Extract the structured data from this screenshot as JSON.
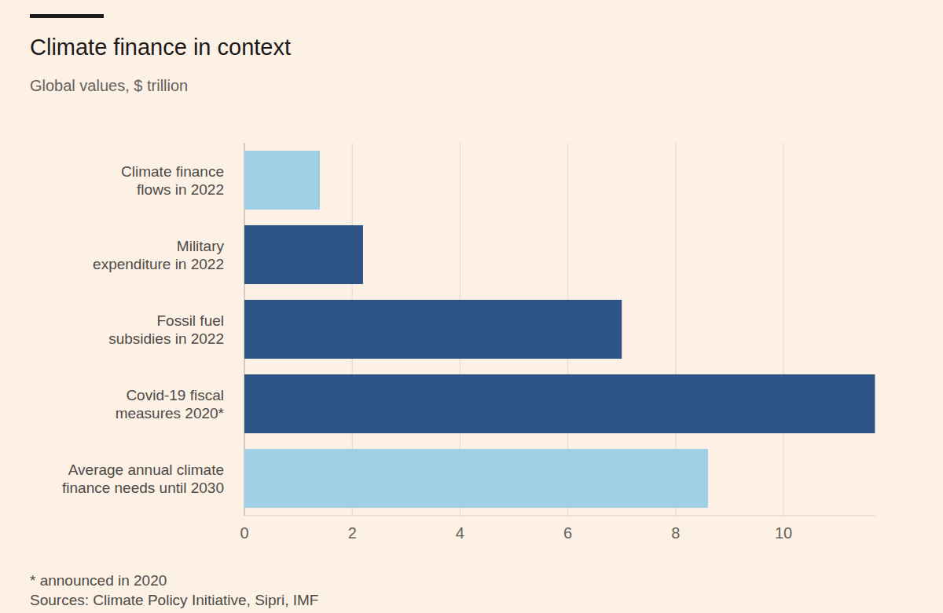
{
  "chart_data": {
    "type": "bar",
    "orientation": "horizontal",
    "title": "Climate finance in context",
    "subtitle": "Global values, $ trillion",
    "categories": [
      "Climate finance flows in 2022",
      "Military expenditure in 2022",
      "Fossil fuel subsidies in 2022",
      "Covid-19 fiscal measures 2020*",
      "Average annual climate finance needs until 2030"
    ],
    "values": [
      1.4,
      2.2,
      7.0,
      11.7,
      8.6
    ],
    "colors": [
      "#a0d0e6",
      "#2e5385",
      "#2e5385",
      "#2e5385",
      "#a0d0e6"
    ],
    "xlim": [
      0,
      11.7
    ],
    "xticks": [
      0,
      2,
      4,
      6,
      8,
      10
    ],
    "grid": true,
    "footnote": "* announced in 2020",
    "source": "Sources: Climate Policy Initiative, Sipri, IMF"
  }
}
